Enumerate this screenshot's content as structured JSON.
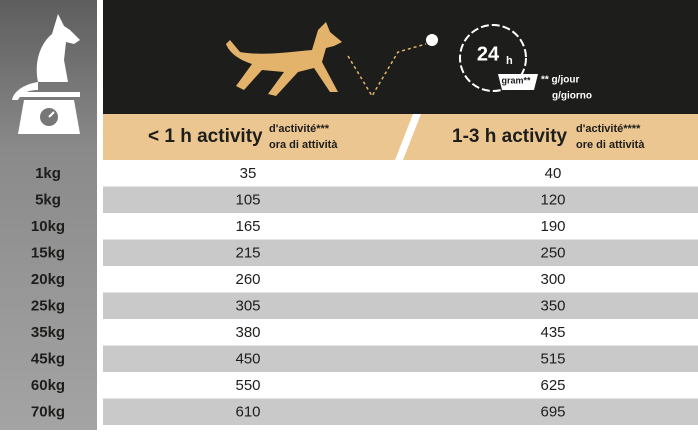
{
  "header": {
    "clock": {
      "hours": "24",
      "unit": "h",
      "gram": "gram**"
    },
    "unit_note": [
      "** g/jour",
      "g/giorno"
    ]
  },
  "table": {
    "columns": [
      {
        "title": "< 1 h activity",
        "subtitle": [
          "d'activité***",
          "ora di attività"
        ]
      },
      {
        "title": "1-3 h activity",
        "subtitle": [
          "d'activité****",
          "ore di attività"
        ]
      }
    ],
    "rows": [
      [
        "1kg",
        35,
        40
      ],
      [
        "5kg",
        105,
        120
      ],
      [
        "10kg",
        165,
        190
      ],
      [
        "15kg",
        215,
        250
      ],
      [
        "20kg",
        260,
        300
      ],
      [
        "25kg",
        305,
        350
      ],
      [
        "35kg",
        380,
        435
      ],
      [
        "45kg",
        450,
        515
      ],
      [
        "60kg",
        550,
        625
      ],
      [
        "70kg",
        610,
        695
      ]
    ]
  }
}
